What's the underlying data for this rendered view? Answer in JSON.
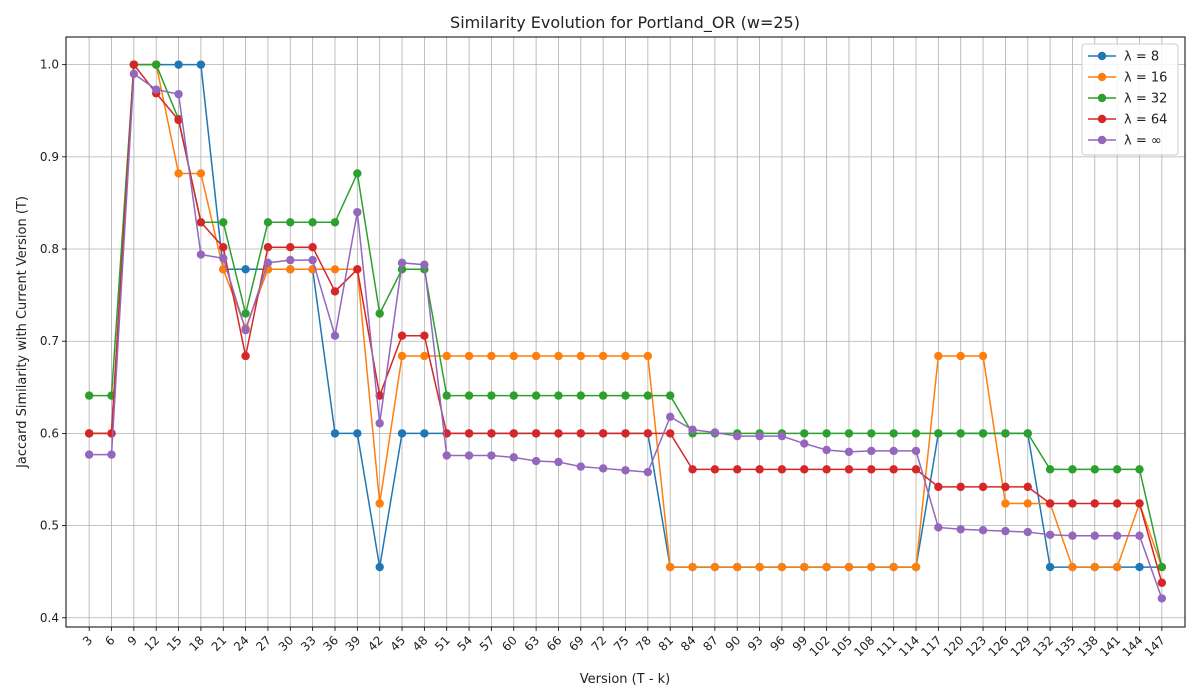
{
  "chart_data": {
    "type": "line",
    "title": "Similarity Evolution for Portland_OR (w=25)",
    "xlabel": "Version (T - k)",
    "ylabel": "Jaccard Similarity with Current Version (T)",
    "x": [
      3,
      6,
      9,
      12,
      15,
      18,
      21,
      24,
      27,
      30,
      33,
      36,
      39,
      42,
      45,
      48,
      51,
      54,
      57,
      60,
      63,
      66,
      69,
      72,
      75,
      78,
      81,
      84,
      87,
      90,
      93,
      96,
      99,
      102,
      105,
      108,
      111,
      114,
      117,
      120,
      123,
      126,
      129,
      132,
      135,
      138,
      141,
      144,
      147
    ],
    "ylim": [
      0.39,
      1.03
    ],
    "yticks": [
      0.4,
      0.5,
      0.6,
      0.7,
      0.8,
      0.9,
      1.0
    ],
    "grid": true,
    "legend_position": "top-right",
    "series": [
      {
        "name": "λ = 8",
        "color": "#1f77b4",
        "values": [
          0.6,
          0.6,
          1.0,
          1.0,
          1.0,
          1.0,
          0.778,
          0.778,
          0.778,
          0.778,
          0.778,
          0.6,
          0.6,
          0.455,
          0.6,
          0.6,
          0.6,
          0.6,
          0.6,
          0.6,
          0.6,
          0.6,
          0.6,
          0.6,
          0.6,
          0.6,
          0.455,
          0.455,
          0.455,
          0.455,
          0.455,
          0.455,
          0.455,
          0.455,
          0.455,
          0.455,
          0.455,
          0.455,
          0.6,
          0.6,
          0.6,
          0.6,
          0.6,
          0.455,
          0.455,
          0.455,
          0.455,
          0.455,
          0.455
        ]
      },
      {
        "name": "λ = 16",
        "color": "#ff7f0e",
        "values": [
          0.6,
          0.6,
          1.0,
          1.0,
          0.882,
          0.882,
          0.778,
          0.714,
          0.778,
          0.778,
          0.778,
          0.778,
          0.778,
          0.524,
          0.684,
          0.684,
          0.684,
          0.684,
          0.684,
          0.684,
          0.684,
          0.684,
          0.684,
          0.684,
          0.684,
          0.684,
          0.455,
          0.455,
          0.455,
          0.455,
          0.455,
          0.455,
          0.455,
          0.455,
          0.455,
          0.455,
          0.455,
          0.455,
          0.684,
          0.684,
          0.684,
          0.524,
          0.524,
          0.524,
          0.455,
          0.455,
          0.455,
          0.524,
          0.455
        ]
      },
      {
        "name": "λ = 32",
        "color": "#2ca02c",
        "values": [
          0.641,
          0.641,
          1.0,
          1.0,
          0.941,
          0.829,
          0.829,
          0.73,
          0.829,
          0.829,
          0.829,
          0.829,
          0.882,
          0.73,
          0.778,
          0.778,
          0.641,
          0.641,
          0.641,
          0.641,
          0.641,
          0.641,
          0.641,
          0.641,
          0.641,
          0.641,
          0.641,
          0.6,
          0.6,
          0.6,
          0.6,
          0.6,
          0.6,
          0.6,
          0.6,
          0.6,
          0.6,
          0.6,
          0.6,
          0.6,
          0.6,
          0.6,
          0.6,
          0.561,
          0.561,
          0.561,
          0.561,
          0.561,
          0.455
        ]
      },
      {
        "name": "λ = 64",
        "color": "#d62728",
        "values": [
          0.6,
          0.6,
          1.0,
          0.969,
          0.94,
          0.829,
          0.802,
          0.684,
          0.802,
          0.802,
          0.802,
          0.754,
          0.778,
          0.641,
          0.706,
          0.706,
          0.6,
          0.6,
          0.6,
          0.6,
          0.6,
          0.6,
          0.6,
          0.6,
          0.6,
          0.6,
          0.6,
          0.561,
          0.561,
          0.561,
          0.561,
          0.561,
          0.561,
          0.561,
          0.561,
          0.561,
          0.561,
          0.561,
          0.542,
          0.542,
          0.542,
          0.542,
          0.542,
          0.524,
          0.524,
          0.524,
          0.524,
          0.524,
          0.438
        ]
      },
      {
        "name": "λ = ∞",
        "color": "#9467bd",
        "values": [
          0.577,
          0.577,
          0.99,
          0.973,
          0.968,
          0.794,
          0.79,
          0.712,
          0.785,
          0.788,
          0.788,
          0.706,
          0.84,
          0.611,
          0.785,
          0.783,
          0.576,
          0.576,
          0.576,
          0.574,
          0.57,
          0.569,
          0.564,
          0.562,
          0.56,
          0.558,
          0.618,
          0.604,
          0.601,
          0.597,
          0.597,
          0.597,
          0.589,
          0.582,
          0.58,
          0.581,
          0.581,
          0.581,
          0.498,
          0.496,
          0.495,
          0.494,
          0.493,
          0.49,
          0.489,
          0.489,
          0.489,
          0.489,
          0.421
        ]
      }
    ]
  }
}
